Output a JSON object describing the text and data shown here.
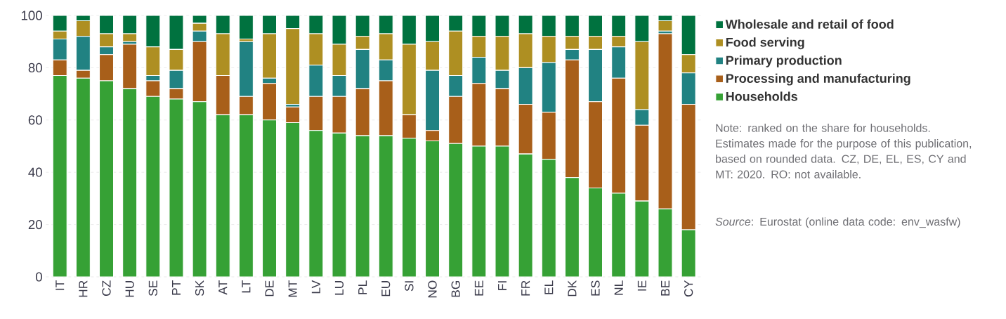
{
  "chart_data": {
    "type": "bar",
    "stacked": true,
    "categories": [
      "IT",
      "HR",
      "CZ",
      "HU",
      "SE",
      "PT",
      "SK",
      "AT",
      "LT",
      "DE",
      "MT",
      "LV",
      "LU",
      "PL",
      "EU",
      "SI",
      "NO",
      "BG",
      "EE",
      "FI",
      "FR",
      "EL",
      "DK",
      "ES",
      "NL",
      "IE",
      "BE",
      "CY"
    ],
    "series": [
      {
        "name": "Households",
        "color": "#36a135",
        "values": [
          77,
          76,
          75,
          72,
          69,
          68,
          67,
          62,
          62,
          60,
          59,
          56,
          55,
          54,
          54,
          53,
          52,
          51,
          50,
          50,
          47,
          45,
          38,
          34,
          32,
          29,
          26,
          18
        ]
      },
      {
        "name": "Processing and manufacturing",
        "color": "#a85f1a",
        "values": [
          6,
          3,
          10,
          17,
          6,
          4,
          23,
          15,
          7,
          14,
          6,
          13,
          14,
          18,
          21,
          9,
          4,
          18,
          24,
          22,
          19,
          18,
          45,
          33,
          44,
          29,
          67,
          48
        ]
      },
      {
        "name": "Primary production",
        "color": "#218282",
        "values": [
          8,
          13,
          3,
          1,
          2,
          7,
          4,
          0,
          21,
          2,
          1,
          12,
          8,
          15,
          8,
          0,
          23,
          8,
          10,
          7,
          14,
          19,
          4,
          20,
          12,
          6,
          1,
          12
        ]
      },
      {
        "name": "Food serving",
        "color": "#ae8f22",
        "values": [
          3,
          6,
          5,
          3,
          11,
          8,
          3,
          16,
          1,
          17,
          29,
          12,
          12,
          5,
          10,
          27,
          11,
          17,
          8,
          13,
          13,
          10,
          5,
          5,
          4,
          26,
          4,
          7
        ]
      },
      {
        "name": "Wholesale and retail of food",
        "color": "#00723f",
        "values": [
          6,
          2,
          7,
          7,
          12,
          13,
          3,
          7,
          9,
          7,
          5,
          7,
          11,
          8,
          7,
          11,
          10,
          6,
          8,
          8,
          7,
          8,
          8,
          8,
          8,
          10,
          2,
          15
        ]
      }
    ],
    "ylim": [
      0,
      100
    ],
    "yticks": [
      0,
      20,
      40,
      60,
      80,
      100
    ],
    "grid": "y",
    "legend": "right",
    "annotations": [
      "Note: ranked on the share for households. Estimates made for the purpose of this publication, based on rounded data. CZ, DE, EL, ES, CY and MT: 2020. RO: not available.",
      "*Source*: Eurostat (online data code: env_wasfw)"
    ]
  }
}
